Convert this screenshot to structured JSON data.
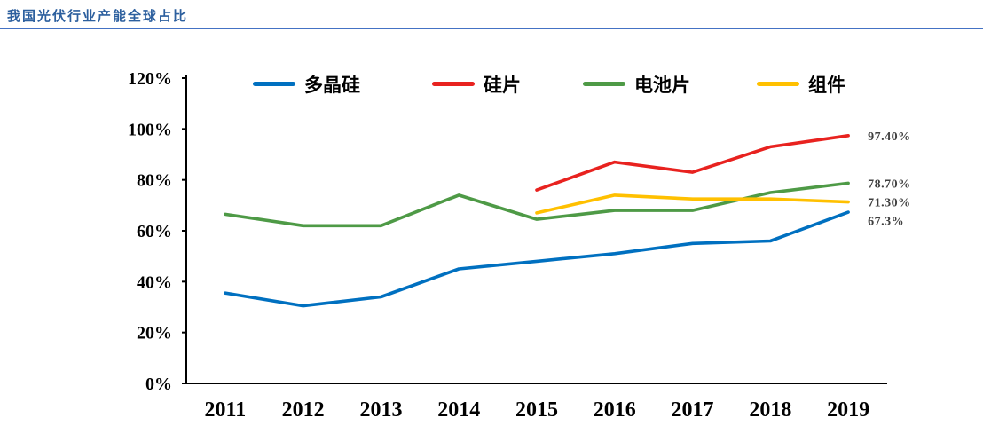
{
  "page": {
    "title": "我国光伏行业产能全球占比"
  },
  "chart_data": {
    "type": "line",
    "title": "我国光伏行业产能全球占比",
    "categories": [
      "2011",
      "2012",
      "2013",
      "2014",
      "2015",
      "2016",
      "2017",
      "2018",
      "2019"
    ],
    "series": [
      {
        "name": "多晶硅",
        "color": "#0070c0",
        "values": [
          35.5,
          30.5,
          34,
          45,
          48,
          51,
          55,
          56,
          67.3
        ],
        "end_label": "67.3%"
      },
      {
        "name": "硅片",
        "color": "#e8221f",
        "values": [
          null,
          null,
          null,
          null,
          76,
          87,
          83,
          93,
          97.4
        ],
        "end_label": "97.40%"
      },
      {
        "name": "电池片",
        "color": "#4e9a46",
        "values": [
          66.5,
          62,
          62,
          74,
          64.5,
          68,
          68,
          75,
          78.7
        ],
        "end_label": "78.70%"
      },
      {
        "name": "组件",
        "color": "#ffc000",
        "values": [
          null,
          null,
          null,
          null,
          67,
          74,
          72.5,
          72.5,
          71.3
        ],
        "end_label": "71.30%"
      }
    ],
    "xlabel": "",
    "ylabel": "",
    "ylim": [
      0,
      120
    ],
    "ytick_step": 20,
    "ytick_labels": [
      "0%",
      "20%",
      "40%",
      "60%",
      "80%",
      "100%",
      "120%"
    ],
    "legend_position": "top",
    "grid": false,
    "axis_color": "#000000",
    "label_color": "#3f3f3f"
  }
}
